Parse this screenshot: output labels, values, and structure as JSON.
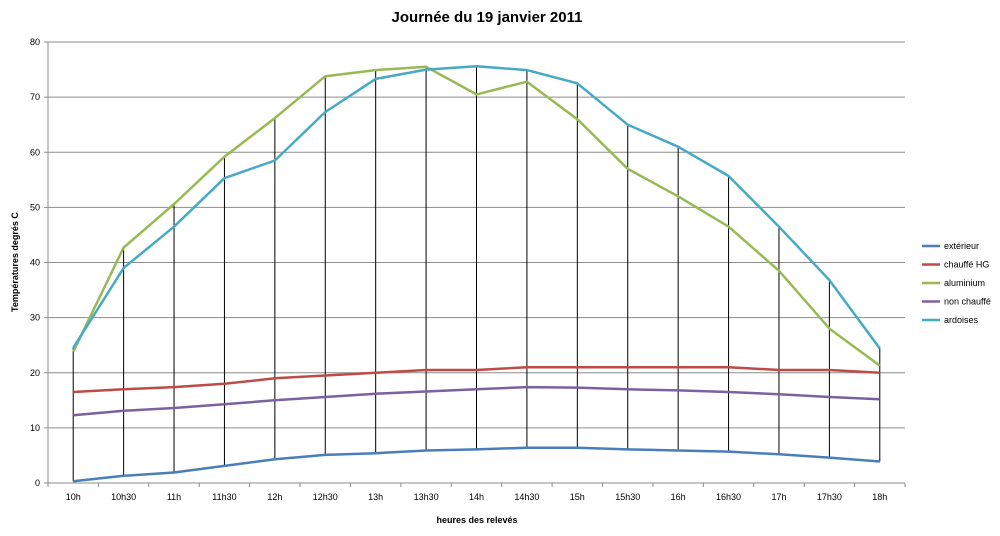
{
  "chart_data": {
    "type": "line",
    "title": "Journée du 19 janvier 2011",
    "xlabel": "heures des relevés",
    "ylabel": "Températures degrés C",
    "ylim": [
      0,
      80
    ],
    "yticks": [
      0,
      10,
      20,
      30,
      40,
      50,
      60,
      70,
      80
    ],
    "grid": true,
    "legend_position": "right",
    "high_low_lines": true,
    "categories": [
      "10h",
      "10h30",
      "11h",
      "11h30",
      "12h",
      "12h30",
      "13h",
      "13h30",
      "14h",
      "14h30",
      "15h",
      "15h30",
      "16h",
      "16h30",
      "17h",
      "17h30",
      "18h"
    ],
    "series": [
      {
        "name": "extérieur",
        "color": "#4a7ebb",
        "values": [
          0.3,
          1.3,
          1.9,
          3.1,
          4.3,
          5.1,
          5.4,
          5.9,
          6.1,
          6.4,
          6.4,
          6.1,
          5.9,
          5.7,
          5.2,
          4.6,
          3.9
        ]
      },
      {
        "name": "chauffé HG",
        "color": "#be4b48",
        "values": [
          16.5,
          17,
          17.4,
          18,
          19,
          19.5,
          20,
          20.5,
          20.5,
          21,
          21,
          21,
          21,
          21,
          20.5,
          20.5,
          20
        ]
      },
      {
        "name": "aluminium",
        "color": "#98b954",
        "values": [
          23.8,
          42.7,
          50.6,
          59.2,
          66.2,
          73.8,
          74.9,
          75.5,
          70.5,
          72.8,
          66,
          57,
          52,
          46.5,
          38.5,
          28,
          21.3
        ]
      },
      {
        "name": "non chauffé",
        "color": "#7d60a0",
        "values": [
          12.3,
          13.1,
          13.6,
          14.3,
          15,
          15.6,
          16.2,
          16.6,
          17,
          17.4,
          17.3,
          17,
          16.8,
          16.5,
          16.1,
          15.6,
          15.2
        ]
      },
      {
        "name": "ardoises",
        "color": "#46aac5",
        "values": [
          24.5,
          39,
          46.5,
          55.3,
          58.5,
          67.3,
          73.3,
          75,
          75.6,
          74.9,
          72.5,
          65,
          61,
          55.7,
          46.5,
          36.8,
          24.4
        ]
      }
    ]
  }
}
